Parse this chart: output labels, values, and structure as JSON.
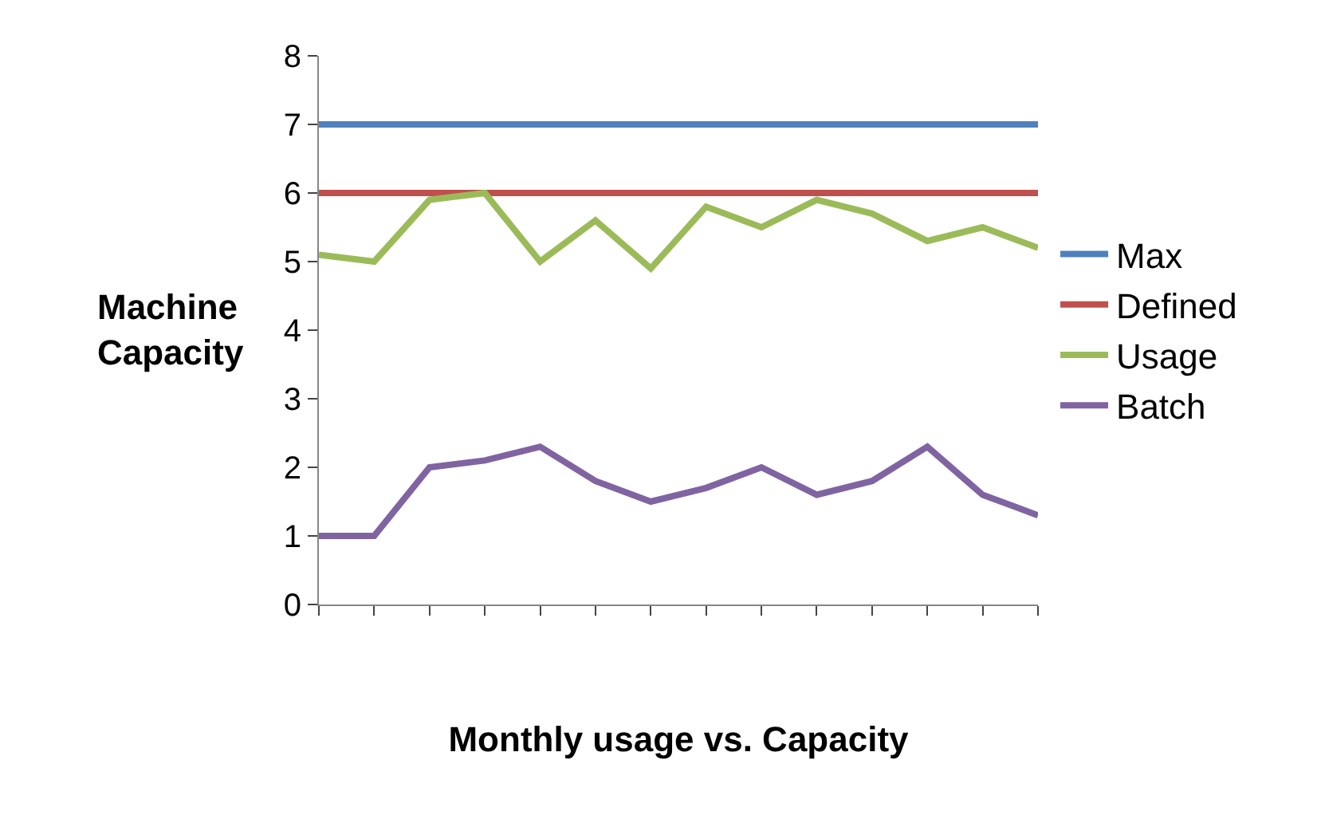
{
  "chart_data": {
    "type": "line",
    "xlabel": "Monthly usage vs. Capacity",
    "ylabel": "Machine Capacity",
    "categories": [
      null,
      null,
      null,
      null,
      null,
      null,
      null,
      null,
      null,
      null,
      null,
      null,
      null,
      null
    ],
    "ylim": [
      0,
      8
    ],
    "yticks": [
      0,
      1,
      2,
      3,
      4,
      5,
      6,
      7,
      8
    ],
    "legend": "right",
    "marker": "none",
    "line_style": "solid",
    "series": [
      {
        "name": "Max",
        "color": "#4f81bd",
        "values": [
          7,
          7,
          7,
          7,
          7,
          7,
          7,
          7,
          7,
          7,
          7,
          7,
          7,
          7
        ]
      },
      {
        "name": "Defined",
        "color": "#c0504d",
        "values": [
          6,
          6,
          6,
          6,
          6,
          6,
          6,
          6,
          6,
          6,
          6,
          6,
          6,
          6
        ]
      },
      {
        "name": "Usage",
        "color": "#9bbb59",
        "values": [
          5.1,
          5.0,
          5.9,
          6.0,
          5.0,
          5.6,
          4.9,
          5.8,
          5.5,
          5.9,
          5.7,
          5.3,
          5.5,
          5.2
        ]
      },
      {
        "name": "Batch",
        "color": "#8064a2",
        "values": [
          1.0,
          1.0,
          2.0,
          2.1,
          2.3,
          1.8,
          1.5,
          1.7,
          2.0,
          1.6,
          1.8,
          2.3,
          1.6,
          1.3
        ]
      }
    ]
  }
}
